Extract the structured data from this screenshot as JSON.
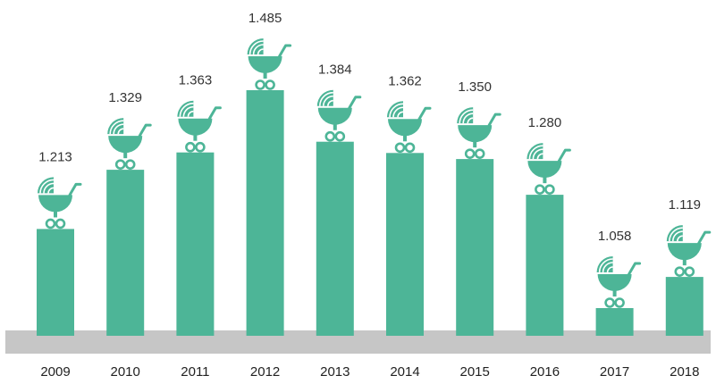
{
  "chart_data": {
    "type": "bar",
    "categories": [
      "2009",
      "2010",
      "2011",
      "2012",
      "2013",
      "2014",
      "2015",
      "2016",
      "2017",
      "2018"
    ],
    "values": [
      1213,
      1329,
      1363,
      1485,
      1384,
      1362,
      1350,
      1280,
      1058,
      1119
    ],
    "value_labels": [
      "1.213",
      "1.329",
      "1.363",
      "1.485",
      "1.384",
      "1.362",
      "1.350",
      "1.280",
      "1.058",
      "1.119"
    ],
    "title": "",
    "xlabel": "",
    "ylabel": "",
    "ylim": [
      1000,
      1500
    ],
    "grid": false,
    "legend": "none",
    "bar_icon": "baby-carriage-icon",
    "colors": {
      "bar": "#4db597",
      "baseline": "#c6c6c6",
      "icon_light": "#ffffff"
    }
  }
}
